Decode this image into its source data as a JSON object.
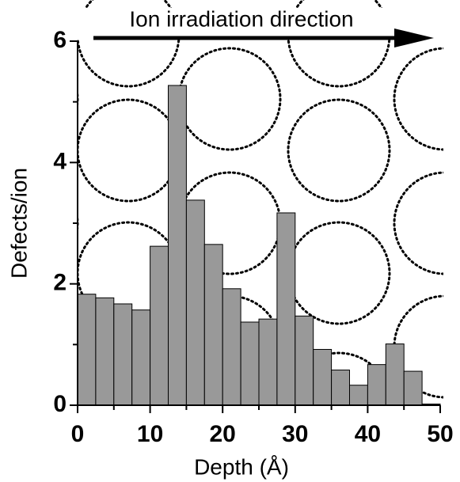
{
  "chart_data": {
    "type": "histogram",
    "annotation": "Ion irradiation direction",
    "x_label": "Depth (Å)",
    "y_label": "Defects/ion",
    "bins": [
      0,
      2.5,
      5,
      7.5,
      10,
      12.5,
      15,
      17.5,
      20,
      22.5,
      25,
      27.5,
      30,
      32.5,
      35,
      37.5,
      40,
      42.5,
      45,
      47.5,
      50
    ],
    "values": [
      1.83,
      1.77,
      1.67,
      1.57,
      2.62,
      5.27,
      3.38,
      2.65,
      1.92,
      1.37,
      1.42,
      3.17,
      1.47,
      0.92,
      0.58,
      0.33,
      0.67,
      1.01,
      0.56,
      0.02
    ],
    "color": "#999999",
    "xlim": [
      0,
      50
    ],
    "xticks": [
      0,
      10,
      20,
      30,
      40,
      50
    ],
    "ylim": [
      0,
      6
    ],
    "yticks": [
      0,
      2,
      4,
      6
    ]
  }
}
